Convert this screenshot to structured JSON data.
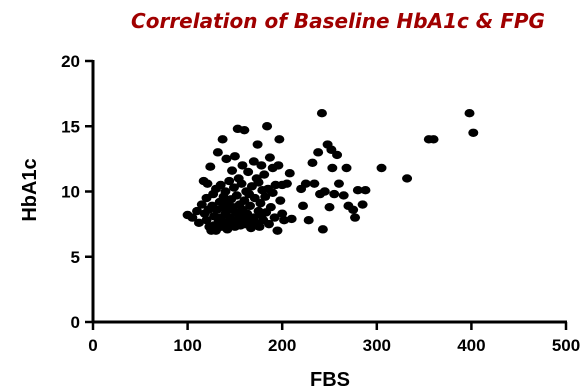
{
  "chart_data": {
    "type": "scatter",
    "title": "Correlation of Baseline HbA1c & FPG",
    "xlabel": "FBS",
    "ylabel": "HbA1c",
    "xlim": [
      0,
      500
    ],
    "ylim": [
      0,
      20
    ],
    "x_ticks": [
      0,
      100,
      200,
      300,
      400,
      500
    ],
    "y_ticks": [
      0,
      5,
      10,
      15,
      20
    ],
    "grid": false,
    "title_color": "#a00000",
    "point_color": "#000000",
    "series": [
      {
        "points": [
          [
            100,
            8.2
          ],
          [
            105,
            8.0
          ],
          [
            110,
            8.5
          ],
          [
            112,
            7.6
          ],
          [
            115,
            9.0
          ],
          [
            117,
            10.8
          ],
          [
            118,
            8.3
          ],
          [
            120,
            7.8
          ],
          [
            120,
            9.5
          ],
          [
            121,
            10.6
          ],
          [
            122,
            8.6
          ],
          [
            123,
            7.3
          ],
          [
            124,
            11.9
          ],
          [
            125,
            7.0
          ],
          [
            126,
            8.9
          ],
          [
            127,
            9.8
          ],
          [
            128,
            7.4
          ],
          [
            128,
            8.1
          ],
          [
            130,
            7.0
          ],
          [
            130,
            10.2
          ],
          [
            131,
            8.6
          ],
          [
            132,
            13.0
          ],
          [
            133,
            7.7
          ],
          [
            134,
            9.2
          ],
          [
            135,
            10.5
          ],
          [
            135,
            8.0
          ],
          [
            136,
            7.3
          ],
          [
            137,
            14.0
          ],
          [
            138,
            8.8
          ],
          [
            138,
            9.6
          ],
          [
            139,
            7.6
          ],
          [
            140,
            10.0
          ],
          [
            140,
            8.3
          ],
          [
            141,
            12.5
          ],
          [
            142,
            7.1
          ],
          [
            142,
            9.1
          ],
          [
            143,
            8.6
          ],
          [
            144,
            10.8
          ],
          [
            145,
            7.5
          ],
          [
            145,
            8.0
          ],
          [
            146,
            9.4
          ],
          [
            147,
            11.6
          ],
          [
            147,
            7.8
          ],
          [
            148,
            8.8
          ],
          [
            149,
            10.3
          ],
          [
            150,
            7.3
          ],
          [
            150,
            12.7
          ],
          [
            151,
            8.4
          ],
          [
            152,
            9.7
          ],
          [
            153,
            14.8
          ],
          [
            153,
            7.6
          ],
          [
            154,
            11.0
          ],
          [
            155,
            8.1
          ],
          [
            155,
            9.0
          ],
          [
            156,
            7.4
          ],
          [
            157,
            10.6
          ],
          [
            158,
            12.0
          ],
          [
            158,
            8.6
          ],
          [
            159,
            7.9
          ],
          [
            160,
            9.3
          ],
          [
            160,
            14.7
          ],
          [
            161,
            7.5
          ],
          [
            162,
            10.0
          ],
          [
            163,
            8.3
          ],
          [
            164,
            11.5
          ],
          [
            165,
            7.7
          ],
          [
            165,
            9.8
          ],
          [
            166,
            8.9
          ],
          [
            167,
            7.2
          ],
          [
            168,
            10.4
          ],
          [
            170,
            8.0
          ],
          [
            170,
            12.3
          ],
          [
            171,
            9.5
          ],
          [
            172,
            7.6
          ],
          [
            173,
            11.0
          ],
          [
            174,
            13.6
          ],
          [
            175,
            8.5
          ],
          [
            175,
            10.7
          ],
          [
            176,
            7.3
          ],
          [
            177,
            9.1
          ],
          [
            178,
            12.0
          ],
          [
            178,
            8.2
          ],
          [
            179,
            10.1
          ],
          [
            180,
            7.8
          ],
          [
            181,
            11.3
          ],
          [
            182,
            9.6
          ],
          [
            183,
            8.4
          ],
          [
            184,
            15.0
          ],
          [
            185,
            10.2
          ],
          [
            186,
            7.5
          ],
          [
            187,
            12.6
          ],
          [
            188,
            8.8
          ],
          [
            190,
            9.9
          ],
          [
            190,
            11.8
          ],
          [
            192,
            8.0
          ],
          [
            193,
            10.5
          ],
          [
            195,
            7.0
          ],
          [
            196,
            12.0
          ],
          [
            197,
            14.0
          ],
          [
            198,
            9.3
          ],
          [
            200,
            10.5
          ],
          [
            200,
            8.3
          ],
          [
            202,
            7.8
          ],
          [
            205,
            10.6
          ],
          [
            208,
            11.4
          ],
          [
            210,
            7.9
          ],
          [
            220,
            10.2
          ],
          [
            222,
            8.9
          ],
          [
            225,
            10.6
          ],
          [
            228,
            7.8
          ],
          [
            232,
            12.2
          ],
          [
            234,
            10.6
          ],
          [
            238,
            13.0
          ],
          [
            240,
            9.8
          ],
          [
            242,
            16.0
          ],
          [
            243,
            7.1
          ],
          [
            245,
            10.0
          ],
          [
            248,
            13.6
          ],
          [
            250,
            8.8
          ],
          [
            252,
            13.2
          ],
          [
            253,
            11.8
          ],
          [
            255,
            9.8
          ],
          [
            258,
            12.8
          ],
          [
            260,
            10.6
          ],
          [
            265,
            9.7
          ],
          [
            268,
            11.8
          ],
          [
            270,
            8.9
          ],
          [
            275,
            8.6
          ],
          [
            277,
            8.0
          ],
          [
            280,
            10.1
          ],
          [
            285,
            9.0
          ],
          [
            288,
            10.1
          ],
          [
            305,
            11.8
          ],
          [
            332,
            11.0
          ],
          [
            355,
            14.0
          ],
          [
            360,
            14.0
          ],
          [
            398,
            16.0
          ],
          [
            402,
            14.5
          ]
        ]
      }
    ]
  }
}
